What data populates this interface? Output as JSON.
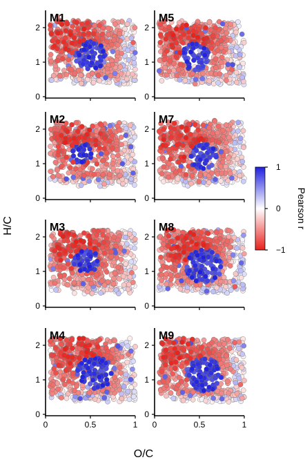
{
  "chart_data": {
    "type": "scatter",
    "xlabel": "O/C",
    "ylabel": "H/C",
    "xlim": [
      0,
      1
    ],
    "ylim": [
      0,
      2.5
    ],
    "x_ticks": [
      0,
      0.5,
      1
    ],
    "x_tick_labels": [
      "0",
      "0.5",
      "1"
    ],
    "y_ticks": [
      0,
      1,
      2
    ],
    "y_tick_labels": [
      "0",
      "1",
      "2"
    ],
    "colorbar": {
      "label": "Pearson r",
      "ticks": [
        1,
        0,
        -1
      ],
      "tick_labels": [
        "1",
        "0",
        "−1"
      ],
      "min_color": "#e8201b",
      "mid_color": "#ffffff",
      "max_color": "#2020e0"
    },
    "panels": [
      {
        "label": "M1",
        "blue_center": [
          0.5,
          1.2
        ],
        "blue_spread": 0.17,
        "red_center": [
          0.3,
          1.8
        ]
      },
      {
        "label": "M5",
        "blue_center": [
          0.45,
          1.15
        ],
        "blue_spread": 0.16,
        "red_center": [
          0.35,
          1.8
        ]
      },
      {
        "label": "M2",
        "blue_center": [
          0.4,
          1.3
        ],
        "blue_spread": 0.12,
        "red_center": [
          0.4,
          1.6
        ]
      },
      {
        "label": "M7",
        "blue_center": [
          0.55,
          1.2
        ],
        "blue_spread": 0.16,
        "red_center": [
          0.3,
          1.7
        ]
      },
      {
        "label": "M3",
        "blue_center": [
          0.45,
          1.3
        ],
        "blue_spread": 0.14,
        "red_center": [
          0.35,
          1.7
        ]
      },
      {
        "label": "M8",
        "blue_center": [
          0.55,
          1.15
        ],
        "blue_spread": 0.2,
        "red_center": [
          0.35,
          1.9
        ]
      },
      {
        "label": "M4",
        "blue_center": [
          0.55,
          1.2
        ],
        "blue_spread": 0.2,
        "red_center": [
          0.35,
          1.8
        ]
      },
      {
        "label": "M9",
        "blue_center": [
          0.55,
          1.15
        ],
        "blue_spread": 0.2,
        "red_center": [
          0.3,
          1.8
        ]
      }
    ]
  }
}
